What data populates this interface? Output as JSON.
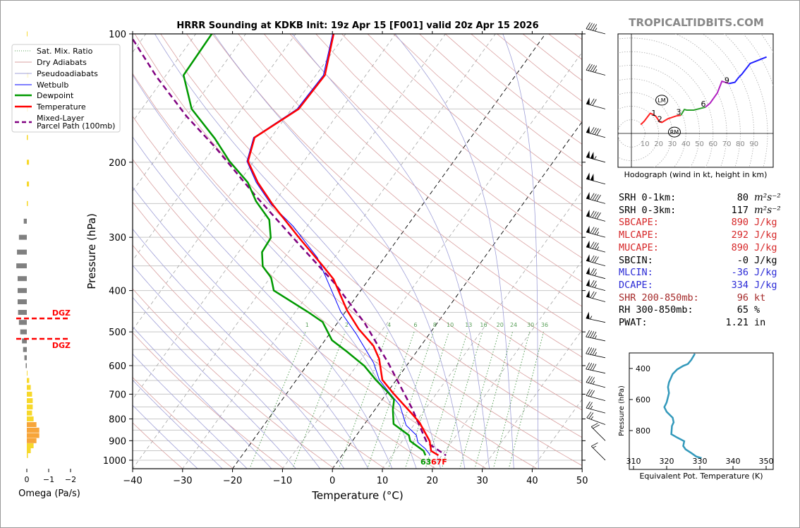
{
  "title": "HRRR Sounding at KDKB Init: 19z Apr 15 [F001] valid 20z Apr 15 2026",
  "watermark": "TROPICALTIDBITS.COM",
  "surface_labels": {
    "dewpoint": "63",
    "temperature": "67F"
  },
  "colors": {
    "temperature": "#ff0000",
    "dewpoint": "#009900",
    "wetbulb": "#0000ff",
    "parcel": "#800080",
    "dry_adiabat": "#d9a0a0",
    "moist_adiabat": "#a0a0d8",
    "mixing_ratio": "#5aa05a",
    "theta_e": "#3399bb",
    "omega_up": "#f7d82a",
    "omega_up_strong": "#f7a53a",
    "omega_down": "#808080",
    "dgz": "#ff0000"
  },
  "legend": {
    "items": [
      "Sat. Mix. Ratio",
      "Dry Adiabats",
      "Pseudoadiabats",
      "Wetbulb",
      "Dewpoint",
      "Temperature",
      "Mixed-Layer",
      "Parcel Path (100mb)"
    ]
  },
  "stats": [
    {
      "label": "SRH 0-1km:",
      "value": "80",
      "unit": "m²s⁻²",
      "color": "#000000"
    },
    {
      "label": "SRH 0-3km:",
      "value": "117",
      "unit": "m²s⁻²",
      "color": "#000000"
    },
    {
      "label": "SBCAPE:",
      "value": "890",
      "unit": "J/kg",
      "color": "#d62728"
    },
    {
      "label": "MLCAPE:",
      "value": "292",
      "unit": "J/kg",
      "color": "#d62728"
    },
    {
      "label": "MUCAPE:",
      "value": "890",
      "unit": "J/kg",
      "color": "#d62728"
    },
    {
      "label": "SBCIN:",
      "value": "-0",
      "unit": "J/kg",
      "color": "#000000"
    },
    {
      "label": "MLCIN:",
      "value": "-36",
      "unit": "J/kg",
      "color": "#2a2ad6"
    },
    {
      "label": "DCAPE:",
      "value": "334",
      "unit": "J/kg",
      "color": "#2a2ad6"
    },
    {
      "label": "SHR 200-850mb:",
      "value": "96",
      "unit": "kt",
      "color": "#a52a2a"
    },
    {
      "label": "RH 300-850mb:",
      "value": "65",
      "unit": "%",
      "color": "#000000"
    },
    {
      "label": "PWAT:",
      "value": "1.21",
      "unit": "in",
      "color": "#000000"
    }
  ],
  "chart_data": [
    {
      "type": "line",
      "name": "skew-t",
      "xlabel": "Temperature (°C)",
      "ylabel": "Pressure (hPa)",
      "xlim": [
        -40,
        50
      ],
      "ylim": [
        1050,
        100
      ],
      "xticks": [
        -40,
        -30,
        -20,
        -10,
        0,
        10,
        20,
        30,
        40,
        50
      ],
      "yticks": [
        100,
        200,
        300,
        400,
        500,
        600,
        700,
        800,
        900,
        1000
      ],
      "grid": true,
      "legend_position": "top-left",
      "mixing_ratio_labels": [
        1,
        2,
        4,
        6,
        8,
        10,
        13,
        16,
        20,
        24,
        30,
        36
      ],
      "series": [
        {
          "name": "Temperature",
          "p": [
            100,
            125,
            150,
            175,
            199,
            223,
            251,
            301,
            351,
            376,
            445,
            492,
            539,
            578,
            648,
            700,
            773,
            816,
            902,
            951,
            974
          ],
          "t": [
            -62.4,
            -58.2,
            -58.6,
            -63.3,
            -61.2,
            -56.2,
            -50.1,
            -39.9,
            -31.0,
            -27.1,
            -19.9,
            -14.9,
            -9.5,
            -6.5,
            -2.8,
            1.6,
            7.6,
            10.8,
            15.5,
            17.2,
            19.3
          ]
        },
        {
          "name": "Dewpoint",
          "p": [
            100,
            125,
            150,
            176,
            199,
            223,
            247,
            273,
            301,
            325,
            351,
            373,
            400,
            449,
            474,
            523,
            556,
            601,
            648,
            694,
            721,
            761,
            822,
            874,
            902,
            951,
            974
          ],
          "t": [
            -86.8,
            -86.5,
            -80.0,
            -71.1,
            -64.9,
            -58.2,
            -53.8,
            -48.5,
            -45.6,
            -45.3,
            -43.1,
            -39.8,
            -37.4,
            -27.5,
            -23.1,
            -18.6,
            -14.0,
            -8.4,
            -4.1,
            0.2,
            2.4,
            3.6,
            5.8,
            10.5,
            11.6,
            15.7,
            16.7
          ]
        },
        {
          "name": "Wetbulb",
          "p": [
            100,
            125,
            150,
            175,
            199,
            223,
            251,
            283,
            335,
            373,
            449,
            505,
            591,
            648,
            689,
            744,
            828,
            874,
            908,
            938,
            967,
            974
          ],
          "t": [
            -62.6,
            -58.5,
            -58.9,
            -63.5,
            -61.4,
            -56.5,
            -50.4,
            -42.7,
            -33.4,
            -28.8,
            -20.9,
            -14.7,
            -7.0,
            -3.4,
            0.0,
            4.4,
            8.5,
            12.0,
            13.3,
            15.6,
            17.3,
            17.6
          ]
        },
        {
          "name": "Mixed-Layer Parcel Path (100mb)",
          "p": [
            103,
            126,
            156,
            185,
            239,
            301,
            385,
            477,
            591,
            755,
            908,
            974
          ],
          "t": [
            -101.8,
            -91.7,
            -80.0,
            -69.6,
            -54.9,
            -41.1,
            -26.2,
            -14.5,
            -4.1,
            7.2,
            15.1,
            20.8
          ]
        }
      ],
      "wind_barbs": [
        {
          "p": 100,
          "dir": 255,
          "kt": 45
        },
        {
          "p": 125,
          "dir": 255,
          "kt": 45
        },
        {
          "p": 150,
          "dir": 255,
          "kt": 70
        },
        {
          "p": 175,
          "dir": 255,
          "kt": 90
        },
        {
          "p": 200,
          "dir": 255,
          "kt": 105
        },
        {
          "p": 225,
          "dir": 255,
          "kt": 100
        },
        {
          "p": 250,
          "dir": 255,
          "kt": 90
        },
        {
          "p": 275,
          "dir": 255,
          "kt": 90
        },
        {
          "p": 300,
          "dir": 255,
          "kt": 85
        },
        {
          "p": 325,
          "dir": 255,
          "kt": 85
        },
        {
          "p": 350,
          "dir": 255,
          "kt": 80
        },
        {
          "p": 375,
          "dir": 255,
          "kt": 75
        },
        {
          "p": 400,
          "dir": 255,
          "kt": 75
        },
        {
          "p": 425,
          "dir": 255,
          "kt": 70
        },
        {
          "p": 475,
          "dir": 258,
          "kt": 55
        },
        {
          "p": 525,
          "dir": 258,
          "kt": 45
        },
        {
          "p": 575,
          "dir": 258,
          "kt": 45
        },
        {
          "p": 625,
          "dir": 258,
          "kt": 40
        },
        {
          "p": 675,
          "dir": 255,
          "kt": 35
        },
        {
          "p": 725,
          "dir": 255,
          "kt": 30
        },
        {
          "p": 775,
          "dir": 255,
          "kt": 25
        },
        {
          "p": 825,
          "dir": 250,
          "kt": 25
        },
        {
          "p": 900,
          "dir": 225,
          "kt": 20
        },
        {
          "p": 1000,
          "dir": 225,
          "kt": 15
        }
      ]
    },
    {
      "type": "bar",
      "name": "omega",
      "xlabel": "Omega (Pa/s)",
      "xticks": [
        0,
        -1,
        -2
      ],
      "xlim": [
        0.5,
        -2
      ],
      "dgz_label": "DGZ",
      "dgz_bounds_hpa": [
        465,
        519
      ],
      "p": [
        100,
        125,
        150,
        175,
        200,
        225,
        250,
        275,
        300,
        325,
        350,
        375,
        400,
        425,
        450,
        475,
        500,
        525,
        550,
        575,
        600,
        625,
        650,
        675,
        700,
        725,
        750,
        775,
        800,
        825,
        850,
        875,
        900,
        925,
        950,
        975
      ],
      "omega": [
        -0.03,
        -0.08,
        -0.05,
        -0.05,
        -0.1,
        -0.1,
        -0.05,
        0.14,
        0.36,
        0.45,
        0.48,
        0.42,
        0.42,
        0.42,
        0.4,
        0.36,
        0.3,
        0.22,
        0.17,
        0.11,
        0.05,
        -0.03,
        -0.11,
        -0.18,
        -0.24,
        -0.27,
        -0.27,
        -0.24,
        -0.31,
        -0.44,
        -0.57,
        -0.57,
        -0.44,
        -0.31,
        -0.18,
        -0.05
      ]
    },
    {
      "type": "line",
      "name": "hodograph",
      "xlabel": "Hodograph (wind in kt, height in km)",
      "ring_labels": [
        10,
        20,
        30,
        40,
        50,
        60,
        70,
        80,
        90
      ],
      "u": [
        6.9,
        9.5,
        13.8,
        15.5,
        18.1,
        20.7,
        22.4,
        26.8,
        32.8,
        36.3,
        38.9,
        40.6,
        45.8,
        54.4,
        57.9,
        63.1,
        66.5,
        71.7,
        76.0,
        78.6,
        81.2,
        87.2,
        99.3
      ],
      "v": [
        6.4,
        9.0,
        14.7,
        14.1,
        12.4,
        8.5,
        8.1,
        10.7,
        12.8,
        13.3,
        17.6,
        17.1,
        17.1,
        19.3,
        22.3,
        29.7,
        38.3,
        36.6,
        37.5,
        40.9,
        43.5,
        51.3,
        56.1
      ],
      "segments": [
        {
          "from": 0,
          "to": 9,
          "color": "#ff2020"
        },
        {
          "from": 9,
          "to": 13,
          "color": "#2ca02c"
        },
        {
          "from": 13,
          "to": 17,
          "color": "#b020c0"
        },
        {
          "from": 17,
          "to": 22,
          "color": "#2020ff"
        }
      ],
      "height_labels": [
        {
          "text": "1",
          "i": 4
        },
        {
          "text": "2",
          "i": 6
        },
        {
          "text": "3",
          "i": 9
        },
        {
          "text": "6",
          "i": 13
        },
        {
          "text": "9",
          "i": 17
        }
      ],
      "storm_motion": [
        {
          "label": "LM",
          "u": 22.3,
          "v": 24.4
        },
        {
          "label": "RM",
          "u": 31.6,
          "v": 1.0
        }
      ]
    },
    {
      "type": "line",
      "name": "theta-e",
      "xlabel": "Equivalent Pot. Temperature (K)",
      "ylabel": "Pressure (hPa)",
      "xticks": [
        310,
        320,
        330,
        340,
        350
      ],
      "yticks": [
        400,
        600,
        800
      ],
      "xlim": [
        308,
        352
      ],
      "ylim": [
        1050,
        300
      ],
      "p": [
        305,
        345,
        371,
        383,
        406,
        436,
        489,
        520,
        558,
        618,
        649,
        679,
        717,
        747,
        770,
        823,
        845,
        868,
        899,
        921,
        944,
        967,
        977
      ],
      "theta_e": [
        328.5,
        327.4,
        326.4,
        325.0,
        323.2,
        321.8,
        320.7,
        320.4,
        320.7,
        320.0,
        319.3,
        320.0,
        321.8,
        322.1,
        321.6,
        321.4,
        323.2,
        325.3,
        325.0,
        325.7,
        327.4,
        328.9,
        330.5
      ]
    }
  ]
}
